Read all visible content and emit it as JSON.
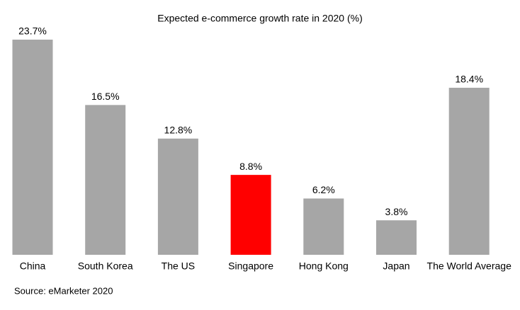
{
  "chart_data": {
    "type": "bar",
    "title": "Expected e-commerce growth rate in 2020 (%)",
    "categories": [
      "China",
      "South Korea",
      "The US",
      "Singapore",
      "Hong Kong",
      "Japan",
      "The World Average"
    ],
    "values": [
      23.7,
      16.5,
      12.8,
      8.8,
      6.2,
      3.8,
      18.4
    ],
    "value_labels": [
      "23.7%",
      "16.5%",
      "12.8%",
      "8.8%",
      "6.2%",
      "3.8%",
      "18.4%"
    ],
    "colors": [
      "#a6a6a6",
      "#a6a6a6",
      "#a6a6a6",
      "#ff0000",
      "#a6a6a6",
      "#a6a6a6",
      "#a6a6a6"
    ],
    "source": "Source: eMarketer 2020"
  }
}
